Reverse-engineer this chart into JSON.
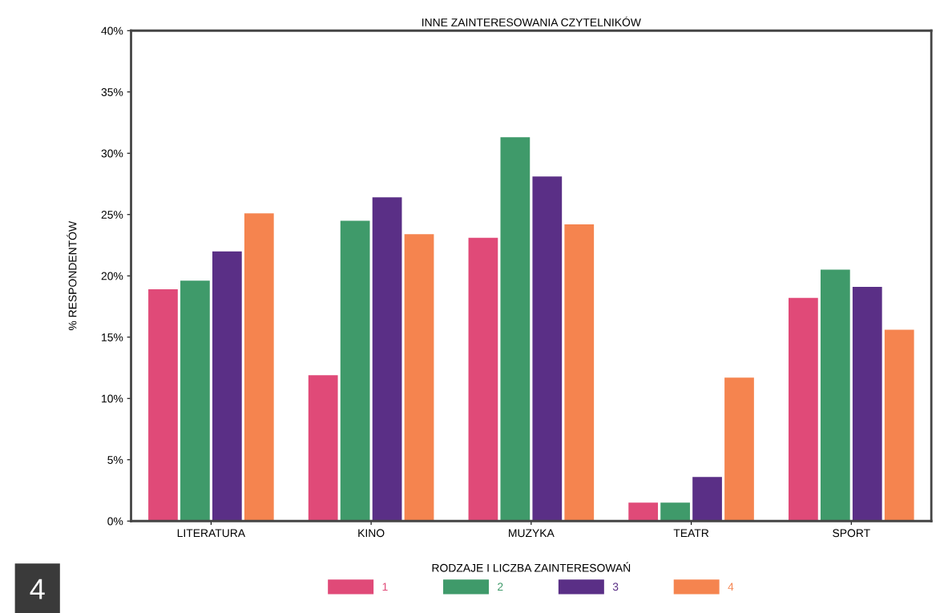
{
  "chart_data": {
    "type": "bar",
    "title": "INNE ZAINTERESOWANIA CZYTELNIKÓW",
    "xlabel": "RODZAJE I LICZBA ZAINTERESOWAŃ",
    "ylabel": "% RESPONDENTÓW",
    "categories": [
      "LITERATURA",
      "KINO",
      "MUZYKA",
      "TEATR",
      "SPORT"
    ],
    "series": [
      {
        "name": "1",
        "color": "#e04a78",
        "values": [
          18.9,
          11.9,
          23.1,
          1.5,
          18.2
        ]
      },
      {
        "name": "2",
        "color": "#3f9a6a",
        "values": [
          19.6,
          24.5,
          31.3,
          1.5,
          20.5
        ]
      },
      {
        "name": "3",
        "color": "#5a2f86",
        "values": [
          22.0,
          26.4,
          28.1,
          3.6,
          19.1
        ]
      },
      {
        "name": "4",
        "color": "#f5844f",
        "values": [
          25.1,
          23.4,
          24.2,
          11.7,
          15.6
        ]
      }
    ],
    "ylim": [
      0,
      40
    ],
    "yticks": [
      {
        "value": 0,
        "label": "0%"
      },
      {
        "value": 5,
        "label": "5%"
      },
      {
        "value": 10,
        "label": "10%"
      },
      {
        "value": 15,
        "label": "15%"
      },
      {
        "value": 20,
        "label": "20%"
      },
      {
        "value": 25,
        "label": "25%"
      },
      {
        "value": 30,
        "label": "30%"
      },
      {
        "value": 35,
        "label": "35%"
      },
      {
        "value": 40,
        "label": "40%"
      }
    ],
    "legend": "bottom",
    "grid": false,
    "annotations": [
      "4"
    ]
  }
}
